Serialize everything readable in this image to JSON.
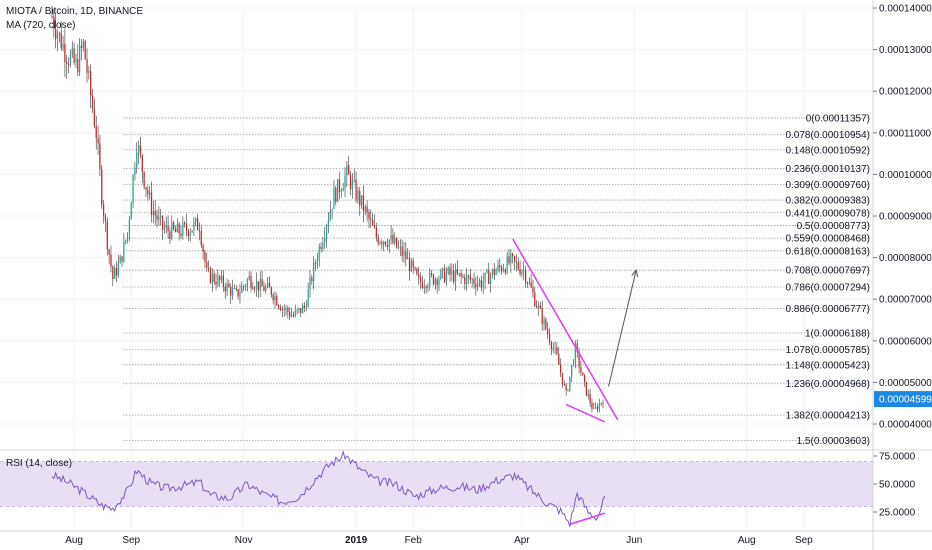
{
  "chart_data": [
    {
      "type": "candlestick",
      "title": "MIOTA / Bitcoin, 1D, BINANCE",
      "indicator": "MA (720, close)",
      "y_ticks": [
        "0.00014000",
        "0.00013000",
        "0.00012000",
        "0.00011000",
        "0.00010000",
        "0.00009000",
        "0.00008000",
        "0.00007000",
        "0.00006000",
        "0.00005000",
        "0.00004000"
      ],
      "y_tick_values": [
        0.00014,
        0.00013,
        0.00012,
        0.00011,
        0.0001,
        9e-05,
        8e-05,
        7e-05,
        6e-05,
        5e-05,
        4e-05
      ],
      "ylim": [
        3.45e-05,
        0.000141
      ],
      "current_price_label": "0.00004599",
      "current_price": 4.599e-05,
      "x_ticks": [
        "Aug",
        "Sep",
        "Nov",
        "2019",
        "Feb",
        "Apr",
        "Jun",
        "Aug",
        "Sep"
      ],
      "x_tick_dates": [
        "2018-08-01",
        "2018-09-01",
        "2018-11-01",
        "2019-01-01",
        "2019-02-01",
        "2019-04-01",
        "2019-06-01",
        "2019-08-01",
        "2019-09-01"
      ],
      "colors": {
        "up": "#26a69a",
        "down": "#c62828",
        "trendline": "#e040fb",
        "arrow": "#555555",
        "fib": "#9e9e9e"
      },
      "fib_levels": [
        {
          "label": "0(0.00011357)",
          "value": 0.00011357
        },
        {
          "label": "0.078(0.00010954)",
          "value": 0.00010954
        },
        {
          "label": "0.148(0.00010592)",
          "value": 0.00010592
        },
        {
          "label": "0.236(0.00010137)",
          "value": 0.00010137
        },
        {
          "label": "0.309(0.00009760)",
          "value": 9.76e-05
        },
        {
          "label": "0.382(0.00009383)",
          "value": 9.383e-05
        },
        {
          "label": "0.441(0.00009078)",
          "value": 9.078e-05
        },
        {
          "label": "0.5(0.00008773)",
          "value": 8.773e-05
        },
        {
          "label": "0.559(0.00008468)",
          "value": 8.468e-05
        },
        {
          "label": "0.618(0.00008163)",
          "value": 8.163e-05
        },
        {
          "label": "0.708(0.00007697)",
          "value": 7.697e-05
        },
        {
          "label": "0.786(0.00007294)",
          "value": 7.294e-05
        },
        {
          "label": "0.886(0.00006777)",
          "value": 6.777e-05
        },
        {
          "label": "1(0.00006188)",
          "value": 6.188e-05
        },
        {
          "label": "1.078(0.00005785)",
          "value": 5.785e-05
        },
        {
          "label": "1.148(0.00005423)",
          "value": 5.423e-05
        },
        {
          "label": "1.236(0.00004968)",
          "value": 4.968e-05
        },
        {
          "label": "1.382(0.00004213)",
          "value": 4.213e-05
        },
        {
          "label": "1.5(0.00003603)",
          "value": 3.603e-05
        }
      ],
      "price_path": [
        [
          "2018-07-20",
          0.000138
        ],
        [
          "2018-07-24",
          0.000133
        ],
        [
          "2018-07-28",
          0.000129
        ],
        [
          "2018-08-02",
          0.000126
        ],
        [
          "2018-08-06",
          0.000131
        ],
        [
          "2018-08-09",
          0.000122
        ],
        [
          "2018-08-13",
          0.00011
        ],
        [
          "2018-08-16",
          9.5e-05
        ],
        [
          "2018-08-19",
          8.4e-05
        ],
        [
          "2018-08-22",
          7.5e-05
        ],
        [
          "2018-08-26",
          7.9e-05
        ],
        [
          "2018-08-30",
          8.6e-05
        ],
        [
          "2018-09-04",
          0.000108
        ],
        [
          "2018-09-08",
          9.9e-05
        ],
        [
          "2018-09-12",
          9.2e-05
        ],
        [
          "2018-09-18",
          8.7e-05
        ],
        [
          "2018-09-25",
          8.6e-05
        ],
        [
          "2018-10-02",
          8.7e-05
        ],
        [
          "2018-10-08",
          8.8e-05
        ],
        [
          "2018-10-12",
          7.6e-05
        ],
        [
          "2018-10-20",
          7.4e-05
        ],
        [
          "2018-10-28",
          7.1e-05
        ],
        [
          "2018-11-04",
          7.5e-05
        ],
        [
          "2018-11-10",
          7.3e-05
        ],
        [
          "2018-11-16",
          7.2e-05
        ],
        [
          "2018-11-22",
          6.8e-05
        ],
        [
          "2018-11-28",
          6.6e-05
        ],
        [
          "2018-12-04",
          6.8e-05
        ],
        [
          "2018-12-10",
          7.9e-05
        ],
        [
          "2018-12-15",
          8.7e-05
        ],
        [
          "2018-12-20",
          9.5e-05
        ],
        [
          "2018-12-27",
          0.0001
        ],
        [
          "2019-01-05",
          9.2e-05
        ],
        [
          "2019-01-12",
          8.5e-05
        ],
        [
          "2019-01-20",
          8.4e-05
        ],
        [
          "2019-01-28",
          8e-05
        ],
        [
          "2019-02-04",
          7.4e-05
        ],
        [
          "2019-02-12",
          7.5e-05
        ],
        [
          "2019-02-20",
          7.6e-05
        ],
        [
          "2019-03-01",
          7.5e-05
        ],
        [
          "2019-03-10",
          7.4e-05
        ],
        [
          "2019-03-18",
          7.7e-05
        ],
        [
          "2019-03-26",
          7.9e-05
        ],
        [
          "2019-04-02",
          7.7e-05
        ],
        [
          "2019-04-08",
          7e-05
        ],
        [
          "2019-04-14",
          6.3e-05
        ],
        [
          "2019-04-20",
          5.6e-05
        ],
        [
          "2019-04-25",
          4.7e-05
        ],
        [
          "2019-04-30",
          5.8e-05
        ],
        [
          "2019-05-05",
          4.9e-05
        ],
        [
          "2019-05-10",
          4.3e-05
        ],
        [
          "2019-05-15",
          4.599e-05
        ]
      ],
      "annotations": [
        {
          "type": "trendline",
          "from": [
            "2019-03-27",
            8.45e-05
          ],
          "to": [
            "2019-05-23",
            4.1e-05
          ]
        },
        {
          "type": "trendline",
          "from": [
            "2019-04-25",
            4.47e-05
          ],
          "to": [
            "2019-05-16",
            4.05e-05
          ]
        },
        {
          "type": "arrow",
          "from": [
            "2019-05-18",
            4.9e-05
          ],
          "to": [
            "2019-06-02",
            7.7e-05
          ]
        }
      ]
    },
    {
      "type": "line",
      "title": "RSI (14, close)",
      "y_ticks": [
        "75.0000",
        "50.0000",
        "25.0000"
      ],
      "y_tick_values": [
        75,
        50,
        25
      ],
      "ylim": [
        5,
        80
      ],
      "band": [
        30,
        70
      ],
      "colors": {
        "line": "#7e57c2",
        "band": "#e8dff5",
        "trendline": "#e040fb"
      },
      "rsi_path": [
        [
          "2018-07-20",
          58
        ],
        [
          "2018-07-28",
          52
        ],
        [
          "2018-08-04",
          45
        ],
        [
          "2018-08-10",
          38
        ],
        [
          "2018-08-16",
          31
        ],
        [
          "2018-08-22",
          28
        ],
        [
          "2018-08-30",
          44
        ],
        [
          "2018-09-04",
          62
        ],
        [
          "2018-09-12",
          50
        ],
        [
          "2018-09-20",
          46
        ],
        [
          "2018-10-01",
          49
        ],
        [
          "2018-10-08",
          52
        ],
        [
          "2018-10-14",
          40
        ],
        [
          "2018-10-24",
          37
        ],
        [
          "2018-11-03",
          50
        ],
        [
          "2018-11-12",
          41
        ],
        [
          "2018-11-22",
          34
        ],
        [
          "2018-12-01",
          39
        ],
        [
          "2018-12-10",
          55
        ],
        [
          "2018-12-18",
          68
        ],
        [
          "2018-12-26",
          76
        ],
        [
          "2019-01-04",
          62
        ],
        [
          "2019-01-12",
          53
        ],
        [
          "2019-01-22",
          50
        ],
        [
          "2019-02-02",
          39
        ],
        [
          "2019-02-14",
          46
        ],
        [
          "2019-02-26",
          48
        ],
        [
          "2019-03-08",
          45
        ],
        [
          "2019-03-18",
          53
        ],
        [
          "2019-03-28",
          58
        ],
        [
          "2019-04-05",
          46
        ],
        [
          "2019-04-14",
          34
        ],
        [
          "2019-04-22",
          26
        ],
        [
          "2019-04-27",
          15
        ],
        [
          "2019-05-01",
          42
        ],
        [
          "2019-05-07",
          25
        ],
        [
          "2019-05-12",
          20
        ],
        [
          "2019-05-16",
          38
        ]
      ],
      "annotations": [
        {
          "type": "trendline",
          "from": [
            "2019-04-27",
            14
          ],
          "to": [
            "2019-05-16",
            24
          ]
        }
      ]
    }
  ]
}
